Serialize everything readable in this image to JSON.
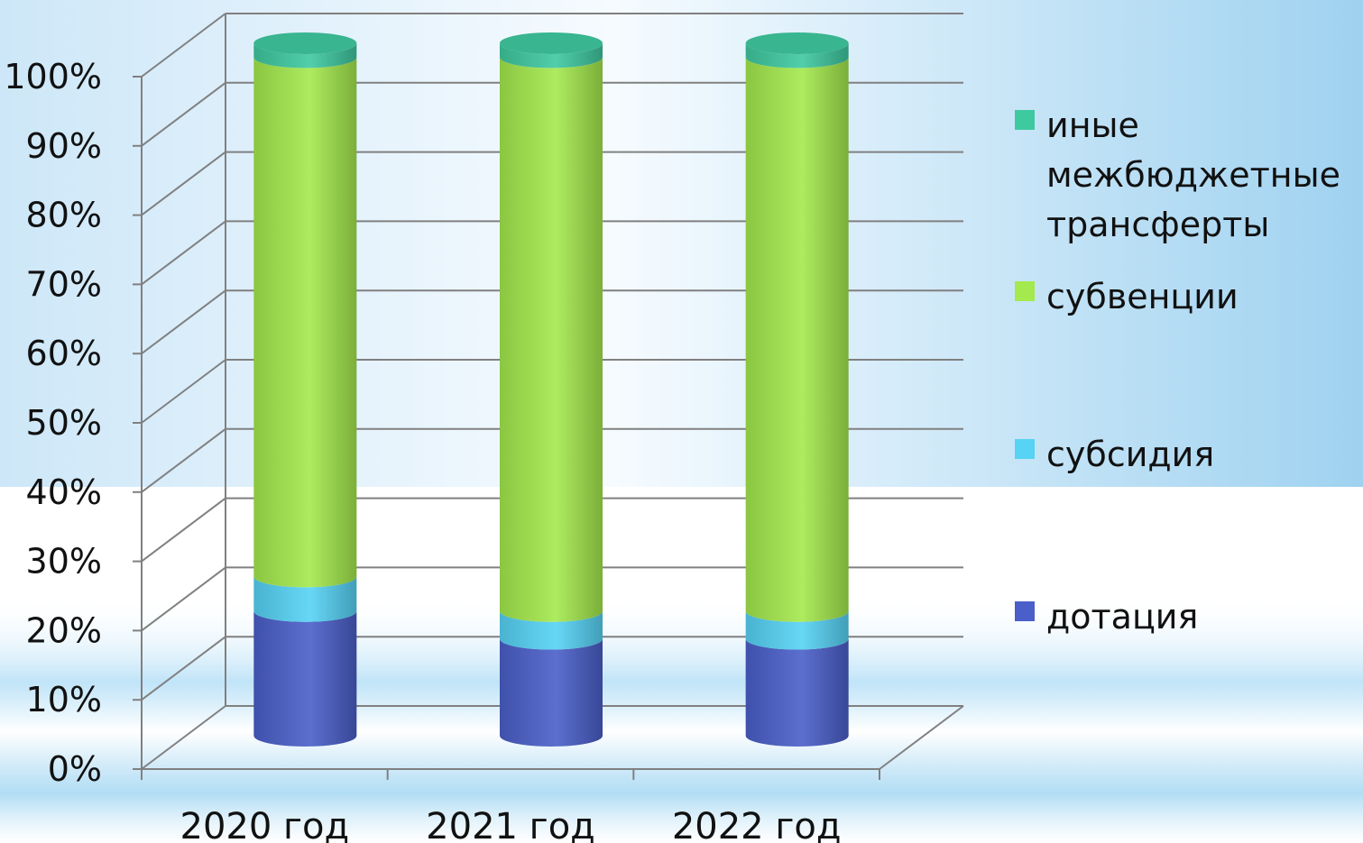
{
  "chart_data": {
    "type": "bar",
    "stacked": true,
    "percent": true,
    "three_d": true,
    "categories": [
      "2020 год",
      "2021 год",
      "2022 год"
    ],
    "ylim": [
      0,
      100
    ],
    "yticks": [
      0,
      10,
      20,
      30,
      40,
      50,
      60,
      70,
      80,
      90,
      100
    ],
    "ytick_suffix": "%",
    "grid": true,
    "legend_position": "right",
    "series": [
      {
        "name": "дотация",
        "values": [
          18,
          14,
          14
        ],
        "color": "#4a5fc9"
      },
      {
        "name": "субсидия",
        "values": [
          5,
          4,
          4
        ],
        "color": "#56d3f5"
      },
      {
        "name": "субвенции",
        "values": [
          75,
          80,
          80
        ],
        "color": "#a4e94d"
      },
      {
        "name": "иные межбюджетные трансферты",
        "values": [
          2,
          2,
          2
        ],
        "color": "#3fc9a0"
      }
    ],
    "legend": [
      {
        "lines": [
          "иные",
          "межбюджетные",
          "трансферты"
        ],
        "color": "#3fc9a0"
      },
      {
        "lines": [
          "субвенции"
        ],
        "color": "#a4e94d"
      },
      {
        "lines": [
          "субсидия"
        ],
        "color": "#56d3f5"
      },
      {
        "lines": [
          "дотация"
        ],
        "color": "#4a5fc9"
      }
    ]
  }
}
